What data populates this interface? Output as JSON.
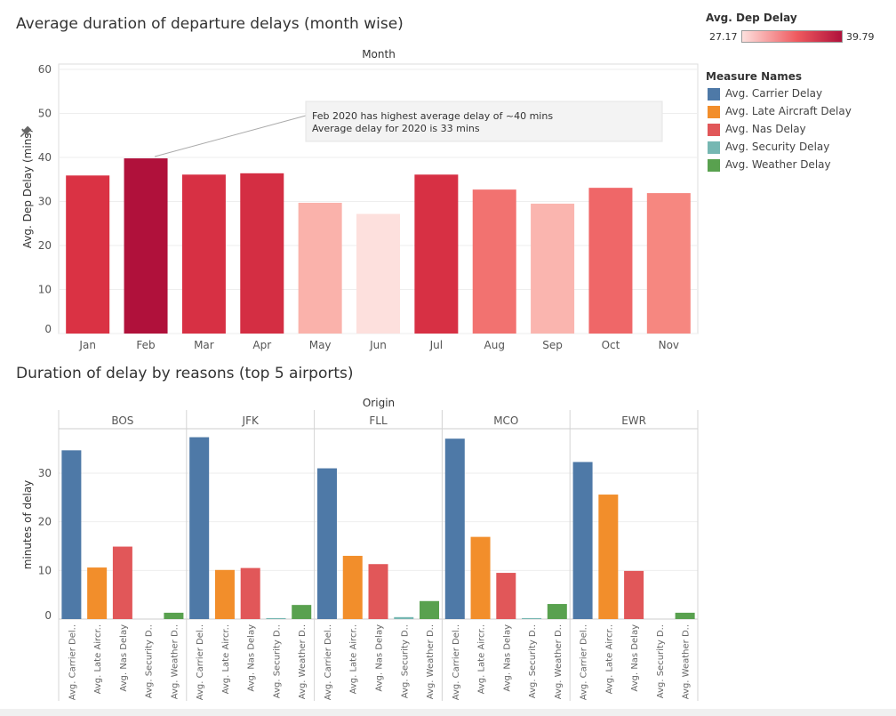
{
  "titles": {
    "chart1": "Average duration of departure delays (month wise)",
    "chart2": "Duration of delay by reasons (top 5 airports)"
  },
  "colors": {
    "carrier": "#4e79a7",
    "late_aircraft": "#f28e2b",
    "nas": "#e15759",
    "security": "#76b7b2",
    "weather": "#59a14f",
    "gradient_low": "#fde0dd",
    "gradient_high": "#b0113b"
  },
  "color_legend": {
    "title": "Avg. Dep Delay",
    "min_label": "27.17",
    "max_label": "39.79",
    "min": 27.17,
    "max": 39.79
  },
  "measure_legend": {
    "title": "Measure Names",
    "items": [
      {
        "label": "Avg. Carrier Delay",
        "color": "#4e79a7"
      },
      {
        "label": "Avg. Late Aircraft Delay",
        "color": "#f28e2b"
      },
      {
        "label": "Avg. Nas Delay",
        "color": "#e15759"
      },
      {
        "label": "Avg. Security Delay",
        "color": "#76b7b2"
      },
      {
        "label": "Avg. Weather Delay",
        "color": "#59a14f"
      }
    ]
  },
  "chart_data": [
    {
      "type": "bar",
      "title": "Average duration of departure delays (month wise)",
      "column_header": "Month",
      "ylabel": "Avg. Dep Delay (mins)",
      "ylim": [
        0,
        60
      ],
      "yticks": [
        0,
        10,
        20,
        30,
        40,
        50,
        60
      ],
      "categories": [
        "Jan",
        "Feb",
        "Mar",
        "Apr",
        "May",
        "Jun",
        "Jul",
        "Aug",
        "Sep",
        "Oct",
        "Nov"
      ],
      "values": [
        35.9,
        39.79,
        36.1,
        36.4,
        29.7,
        27.17,
        36.1,
        32.7,
        29.5,
        33.1,
        31.9
      ],
      "color_by": "value",
      "grid": true,
      "annotation": {
        "line1": "Feb 2020 has highest average delay of ~40 mins",
        "line2": "Average delay for 2020 is 33 mins",
        "target_category": "Feb"
      }
    },
    {
      "type": "bar",
      "title": "Duration of delay by reasons (top 5 airports)",
      "column_header": "Origin",
      "ylabel": "minutes of delay",
      "ylim": [
        0,
        40
      ],
      "yticks": [
        0,
        10,
        20,
        30
      ],
      "measure_labels": [
        "Avg. Carrier Del..",
        "Avg. Late Aircr..",
        "Avg. Nas Delay",
        "Avg. Security D..",
        "Avg. Weather D.."
      ],
      "panels": [
        {
          "origin": "BOS",
          "values": [
            34.7,
            10.6,
            14.9,
            0.0,
            1.3
          ]
        },
        {
          "origin": "JFK",
          "values": [
            37.4,
            10.1,
            10.5,
            0.2,
            2.9
          ]
        },
        {
          "origin": "FLL",
          "values": [
            31.0,
            13.0,
            11.3,
            0.4,
            3.7
          ]
        },
        {
          "origin": "MCO",
          "values": [
            37.1,
            16.9,
            9.5,
            0.2,
            3.1
          ]
        },
        {
          "origin": "EWR",
          "values": [
            32.3,
            25.6,
            9.9,
            0.0,
            1.3
          ]
        }
      ],
      "grid": true
    }
  ]
}
